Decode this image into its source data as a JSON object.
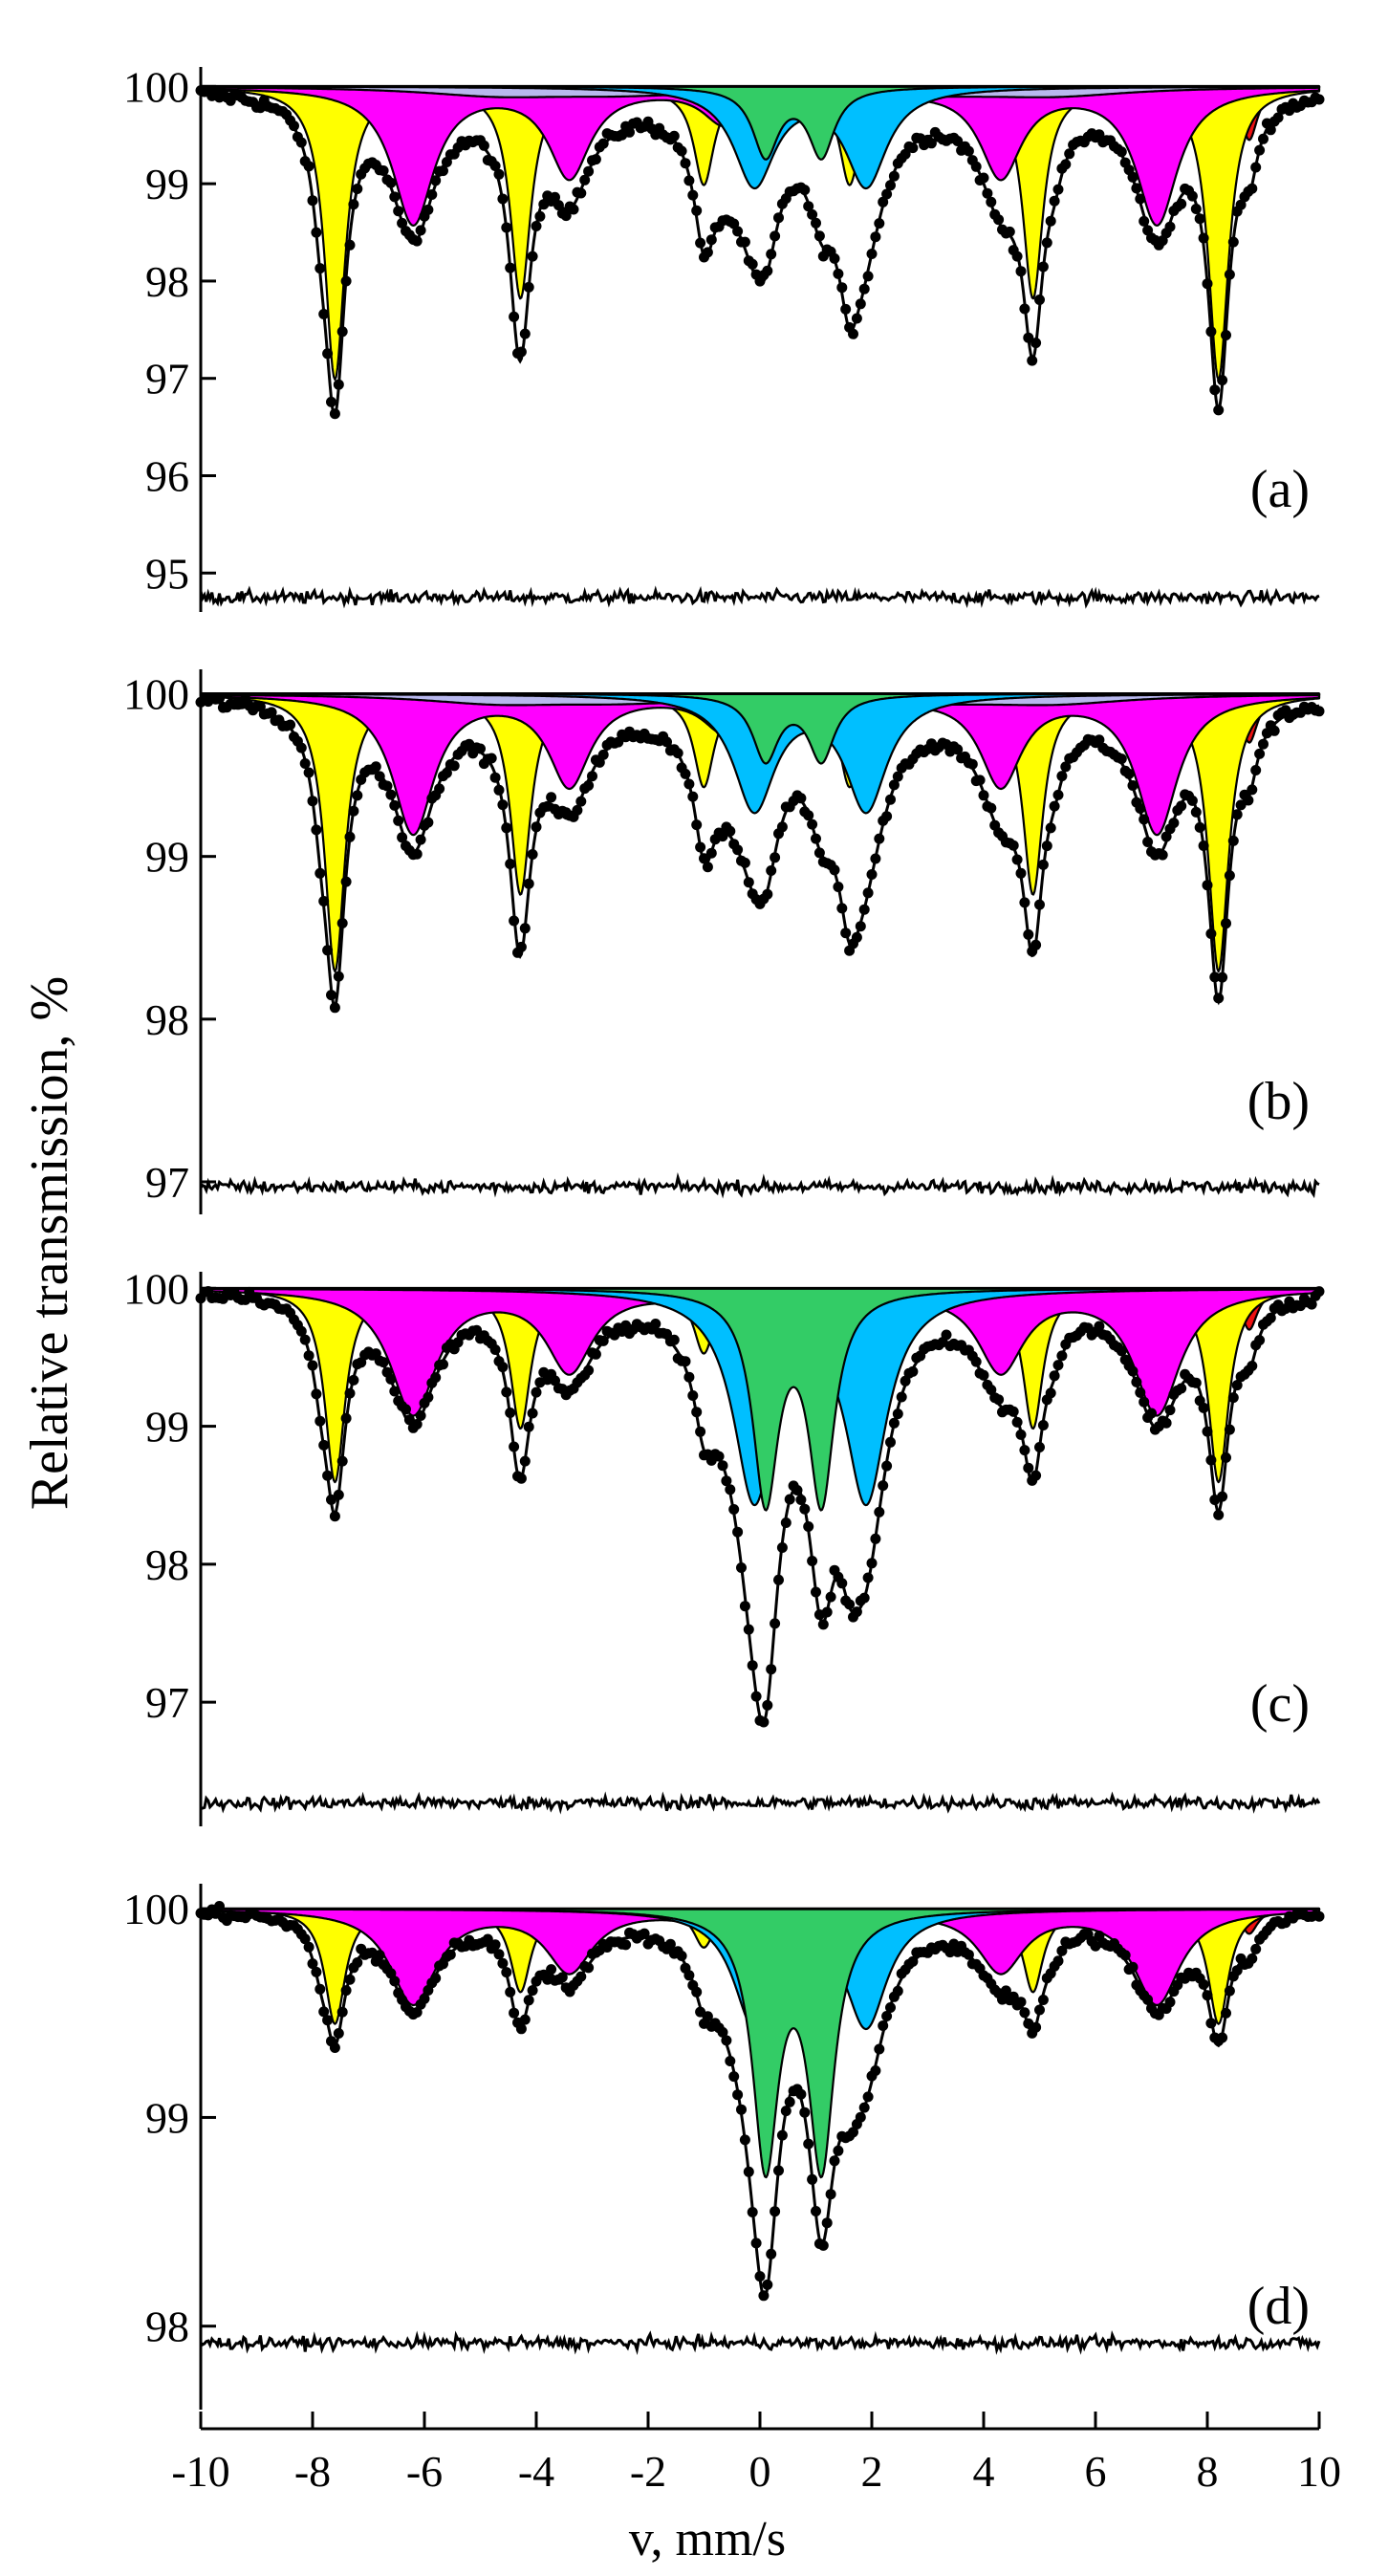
{
  "figure": {
    "ylabel": "Relative transmission, %",
    "xlabel": "v, mm/s",
    "colors": {
      "red": "#ee1111",
      "yellow": "#ffff00",
      "magenta": "#ff00ff",
      "cyan": "#00bfff",
      "green": "#33cc66",
      "lavender": "#b8b8ee",
      "line": "#000000"
    }
  },
  "chart_data": [
    {
      "type": "line",
      "panel_label": "(a)",
      "title": "",
      "xlabel": "v, mm/s",
      "ylabel": "Relative transmission, %",
      "xlim": [
        -10,
        10
      ],
      "ylim": [
        94.6,
        100.2
      ],
      "yticks": [
        95,
        96,
        97,
        98,
        99,
        100
      ],
      "residual_baseline": 94.75,
      "baseline": 100,
      "components": [
        {
          "name": "red",
          "color": "red",
          "center": 0.45,
          "split": 16.6,
          "qs": 0.0,
          "depth": 0.55,
          "width": 0.18,
          "ratios": [
            1,
            0.5,
            0.2,
            0.2,
            0.5,
            1
          ]
        },
        {
          "name": "yellow",
          "color": "yellow",
          "center": 0.3,
          "split": 15.8,
          "qs": 0.0,
          "depth": 3.0,
          "width": 0.22,
          "ratios": [
            1,
            0.72,
            0.33,
            0.33,
            0.72,
            1
          ]
        },
        {
          "name": "magenta",
          "color": "magenta",
          "center": 0.45,
          "split": 13.3,
          "qs": 0.0,
          "depth": 1.4,
          "width": 0.45,
          "ratios": [
            1,
            0.65,
            0.25,
            0.25,
            0.65,
            1
          ]
        },
        {
          "name": "lavender",
          "color": "lavender",
          "center": 0.3,
          "split": 10.0,
          "qs": 0.0,
          "depth": 0.08,
          "width": 1.6,
          "ratios": [
            1,
            0.7,
            0.3,
            0.3,
            0.7,
            1
          ]
        },
        {
          "name": "cyan",
          "color": "cyan",
          "center": 0.9,
          "split": 0,
          "qs": 2.0,
          "depth": 1.0,
          "width": 0.45,
          "ratios": []
        },
        {
          "name": "green",
          "color": "green",
          "center": 0.6,
          "split": 0,
          "qs": 1.0,
          "depth": 0.7,
          "width": 0.28,
          "ratios": []
        }
      ]
    },
    {
      "type": "line",
      "panel_label": "(b)",
      "title": "",
      "xlabel": "v, mm/s",
      "ylabel": "Relative transmission, %",
      "xlim": [
        -10,
        10
      ],
      "ylim": [
        96.8,
        100.15
      ],
      "yticks": [
        97,
        98,
        99,
        100
      ],
      "residual_baseline": 96.97,
      "baseline": 100,
      "components": [
        {
          "name": "red",
          "color": "red",
          "center": 0.45,
          "split": 16.6,
          "qs": 0.0,
          "depth": 0.3,
          "width": 0.18,
          "ratios": [
            1,
            0.5,
            0.2,
            0.2,
            0.5,
            1
          ]
        },
        {
          "name": "yellow",
          "color": "yellow",
          "center": 0.3,
          "split": 15.8,
          "qs": 0.0,
          "depth": 1.7,
          "width": 0.22,
          "ratios": [
            1,
            0.72,
            0.33,
            0.33,
            0.72,
            1
          ]
        },
        {
          "name": "magenta",
          "color": "magenta",
          "center": 0.45,
          "split": 13.3,
          "qs": 0.0,
          "depth": 0.85,
          "width": 0.45,
          "ratios": [
            1,
            0.65,
            0.25,
            0.25,
            0.65,
            1
          ]
        },
        {
          "name": "lavender",
          "color": "lavender",
          "center": 0.3,
          "split": 10.0,
          "qs": 0.0,
          "depth": 0.05,
          "width": 1.6,
          "ratios": [
            1,
            0.7,
            0.3,
            0.3,
            0.7,
            1
          ]
        },
        {
          "name": "cyan",
          "color": "cyan",
          "center": 0.9,
          "split": 0,
          "qs": 2.0,
          "depth": 0.7,
          "width": 0.45,
          "ratios": []
        },
        {
          "name": "green",
          "color": "green",
          "center": 0.6,
          "split": 0,
          "qs": 1.0,
          "depth": 0.4,
          "width": 0.28,
          "ratios": []
        }
      ]
    },
    {
      "type": "line",
      "panel_label": "(c)",
      "title": "",
      "xlabel": "v, mm/s",
      "ylabel": "Relative transmission, %",
      "xlim": [
        -10,
        10
      ],
      "ylim": [
        96.1,
        100.12
      ],
      "yticks": [
        97,
        98,
        99,
        100
      ],
      "residual_baseline": 96.27,
      "baseline": 100,
      "components": [
        {
          "name": "red",
          "color": "red",
          "center": 0.45,
          "split": 16.6,
          "qs": 0.0,
          "depth": 0.3,
          "width": 0.18,
          "ratios": [
            1,
            0.5,
            0.2,
            0.2,
            0.5,
            1
          ]
        },
        {
          "name": "yellow",
          "color": "yellow",
          "center": 0.3,
          "split": 15.8,
          "qs": 0.0,
          "depth": 1.4,
          "width": 0.22,
          "ratios": [
            1,
            0.72,
            0.33,
            0.33,
            0.72,
            1
          ]
        },
        {
          "name": "magenta",
          "color": "magenta",
          "center": 0.45,
          "split": 13.3,
          "qs": 0.0,
          "depth": 0.9,
          "width": 0.5,
          "ratios": [
            1,
            0.65,
            0.25,
            0.25,
            0.65,
            1
          ]
        },
        {
          "name": "cyan",
          "color": "cyan",
          "center": 0.9,
          "split": 0,
          "qs": 2.0,
          "depth": 1.5,
          "width": 0.45,
          "ratios": []
        },
        {
          "name": "green",
          "color": "green",
          "center": 0.6,
          "split": 0,
          "qs": 1.0,
          "depth": 1.5,
          "width": 0.28,
          "ratios": []
        }
      ]
    },
    {
      "type": "line",
      "panel_label": "(d)",
      "title": "",
      "xlabel": "v, mm/s",
      "ylabel": "Relative transmission, %",
      "xlim": [
        -10,
        10
      ],
      "ylim": [
        97.6,
        100.12
      ],
      "yticks": [
        98,
        99,
        100
      ],
      "residual_baseline": 97.92,
      "baseline": 100,
      "components": [
        {
          "name": "red",
          "color": "red",
          "center": 0.45,
          "split": 16.6,
          "qs": 0.0,
          "depth": 0.12,
          "width": 0.18,
          "ratios": [
            1,
            0.5,
            0.2,
            0.2,
            0.5,
            1
          ]
        },
        {
          "name": "yellow",
          "color": "yellow",
          "center": 0.3,
          "split": 15.8,
          "qs": 0.0,
          "depth": 0.55,
          "width": 0.22,
          "ratios": [
            1,
            0.72,
            0.33,
            0.33,
            0.72,
            1
          ]
        },
        {
          "name": "magenta",
          "color": "magenta",
          "center": 0.45,
          "split": 13.3,
          "qs": 0.0,
          "depth": 0.45,
          "width": 0.5,
          "ratios": [
            1,
            0.65,
            0.25,
            0.25,
            0.65,
            1
          ]
        },
        {
          "name": "cyan",
          "color": "cyan",
          "center": 0.9,
          "split": 0,
          "qs": 2.0,
          "depth": 0.55,
          "width": 0.45,
          "ratios": []
        },
        {
          "name": "green",
          "color": "green",
          "center": 0.6,
          "split": 0,
          "qs": 1.0,
          "depth": 1.2,
          "width": 0.28,
          "ratios": []
        }
      ]
    }
  ],
  "xaxis": {
    "ticks": [
      -10,
      -8,
      -6,
      -4,
      -2,
      0,
      2,
      4,
      6,
      8,
      10
    ],
    "tick_labels": [
      "-10",
      "-8",
      "-6",
      "-4",
      "-2",
      "0",
      "2",
      "4",
      "6",
      "8",
      "10"
    ]
  }
}
